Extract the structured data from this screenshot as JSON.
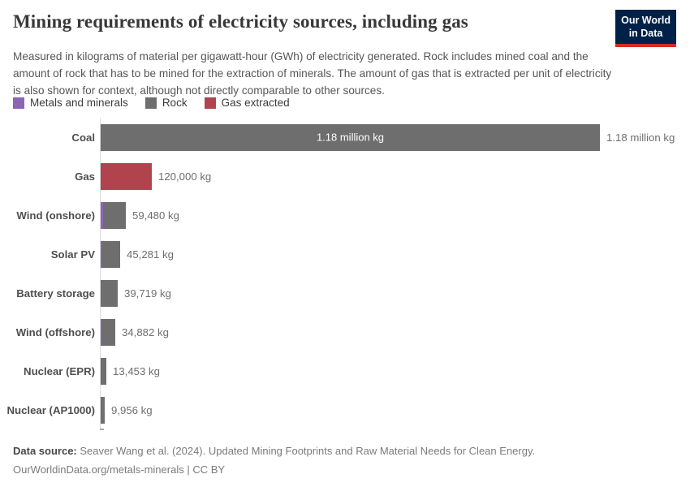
{
  "header": {
    "title": "Mining requirements of electricity sources, including gas",
    "logo": {
      "line1": "Our World",
      "line2": "in Data"
    }
  },
  "subtitle": "Measured in kilograms of material per gigawatt-hour (GWh) of electricity generated. Rock includes mined coal and the amount of rock that has to be mined for the extraction of minerals. The amount of gas that is extracted per unit of electricity is also shown for context, although not directly comparable to other sources.",
  "legend": [
    {
      "label": "Metals and minerals",
      "key": "metals"
    },
    {
      "label": "Rock",
      "key": "rock"
    },
    {
      "label": "Gas extracted",
      "key": "gas"
    }
  ],
  "colors": {
    "metals": "#8c64b4",
    "rock": "#6e6e6e",
    "gas": "#b1434f",
    "logo_navy": "#002147",
    "logo_red": "#cf2d24",
    "axis": "#dcdcdc"
  },
  "chart_data": {
    "type": "bar",
    "orientation": "horizontal",
    "unit": "kg of material per GWh of electricity",
    "x_max": 1180000,
    "grid": false,
    "legend_position": "top",
    "categories": [
      "Coal",
      "Gas",
      "Wind (onshore)",
      "Solar PV",
      "Battery storage",
      "Wind (offshore)",
      "Nuclear (EPR)",
      "Nuclear (AP1000)"
    ],
    "rows": [
      {
        "category": "Coal",
        "total_value": 1180000,
        "value_label": "1.18 million kg",
        "inside_label": "1.18 million kg",
        "segments": [
          {
            "series": "Rock",
            "key": "rock",
            "value": 1180000
          }
        ]
      },
      {
        "category": "Gas",
        "total_value": 120000,
        "value_label": "120,000 kg",
        "segments": [
          {
            "series": "Gas extracted",
            "key": "gas",
            "value": 120000
          }
        ]
      },
      {
        "category": "Wind (onshore)",
        "total_value": 59480,
        "value_label": "59,480 kg",
        "segments": [
          {
            "series": "Metals and minerals",
            "key": "metals",
            "value": 5500
          },
          {
            "series": "Rock",
            "key": "rock",
            "value": 53980
          }
        ]
      },
      {
        "category": "Solar PV",
        "total_value": 45281,
        "value_label": "45,281 kg",
        "segments": [
          {
            "series": "Metals and minerals",
            "key": "metals",
            "value": 1900
          },
          {
            "series": "Rock",
            "key": "rock",
            "value": 43381
          }
        ]
      },
      {
        "category": "Battery storage",
        "total_value": 39719,
        "value_label": "39,719 kg",
        "segments": [
          {
            "series": "Rock",
            "key": "rock",
            "value": 39719
          }
        ]
      },
      {
        "category": "Wind (offshore)",
        "total_value": 34882,
        "value_label": "34,882 kg",
        "segments": [
          {
            "series": "Metals and minerals",
            "key": "metals",
            "value": 1900
          },
          {
            "series": "Rock",
            "key": "rock",
            "value": 32982
          }
        ]
      },
      {
        "category": "Nuclear (EPR)",
        "total_value": 13453,
        "value_label": "13,453 kg",
        "segments": [
          {
            "series": "Rock",
            "key": "rock",
            "value": 13453
          }
        ]
      },
      {
        "category": "Nuclear (AP1000)",
        "total_value": 9956,
        "value_label": "9,956 kg",
        "segments": [
          {
            "series": "Rock",
            "key": "rock",
            "value": 9956
          }
        ]
      }
    ]
  },
  "footer": {
    "source_label": "Data source:",
    "source_text": " Seaver Wang et al. (2024). Updated Mining Footprints and Raw Material Needs for Clean Energy.",
    "license_line": "OurWorldinData.org/metals-minerals | CC BY"
  }
}
